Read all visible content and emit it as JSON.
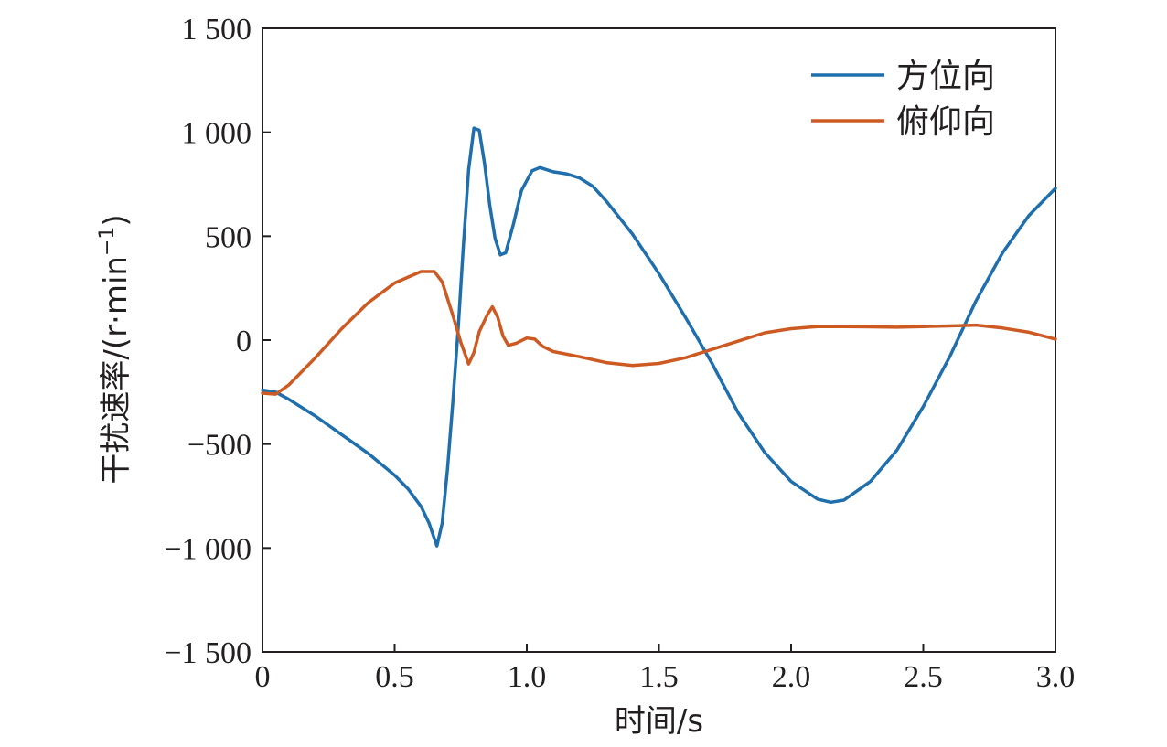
{
  "chart_data": {
    "type": "line",
    "title": "",
    "xlabel": "时间/s",
    "ylabel_main": "干扰速率/(r·min",
    "ylabel_sup": "−1",
    "ylabel_close": ")",
    "xlim": [
      0,
      3.0
    ],
    "ylim": [
      -1500,
      1500
    ],
    "x_ticks": [
      0,
      0.5,
      1.0,
      1.5,
      2.0,
      2.5,
      3.0
    ],
    "x_tick_labels": [
      "0",
      "0.5",
      "1.0",
      "1.5",
      "2.0",
      "2.5",
      "3.0"
    ],
    "y_ticks": [
      1500,
      1000,
      500,
      0,
      -500,
      -1000,
      -1500
    ],
    "y_tick_labels": [
      "1 500",
      "1 000",
      "500",
      "0",
      "−500",
      "−1 000",
      "−1 500"
    ],
    "grid": false,
    "legend_position": "top-right",
    "series": [
      {
        "name": "方位向",
        "color": "#1f6fad",
        "points": [
          [
            0,
            -240
          ],
          [
            0.05,
            -250
          ],
          [
            0.1,
            -285
          ],
          [
            0.2,
            -365
          ],
          [
            0.3,
            -455
          ],
          [
            0.4,
            -545
          ],
          [
            0.5,
            -650
          ],
          [
            0.55,
            -715
          ],
          [
            0.6,
            -800
          ],
          [
            0.63,
            -880
          ],
          [
            0.66,
            -990
          ],
          [
            0.68,
            -880
          ],
          [
            0.7,
            -620
          ],
          [
            0.72,
            -300
          ],
          [
            0.74,
            50
          ],
          [
            0.76,
            450
          ],
          [
            0.78,
            820
          ],
          [
            0.8,
            1020
          ],
          [
            0.82,
            1010
          ],
          [
            0.84,
            850
          ],
          [
            0.86,
            650
          ],
          [
            0.88,
            490
          ],
          [
            0.9,
            410
          ],
          [
            0.92,
            420
          ],
          [
            0.95,
            560
          ],
          [
            0.98,
            720
          ],
          [
            1.02,
            815
          ],
          [
            1.05,
            830
          ],
          [
            1.1,
            810
          ],
          [
            1.15,
            800
          ],
          [
            1.2,
            780
          ],
          [
            1.25,
            740
          ],
          [
            1.3,
            670
          ],
          [
            1.4,
            510
          ],
          [
            1.5,
            320
          ],
          [
            1.6,
            110
          ],
          [
            1.7,
            -110
          ],
          [
            1.8,
            -350
          ],
          [
            1.9,
            -540
          ],
          [
            2.0,
            -680
          ],
          [
            2.1,
            -765
          ],
          [
            2.15,
            -780
          ],
          [
            2.2,
            -770
          ],
          [
            2.3,
            -680
          ],
          [
            2.4,
            -530
          ],
          [
            2.5,
            -320
          ],
          [
            2.6,
            -80
          ],
          [
            2.7,
            190
          ],
          [
            2.8,
            420
          ],
          [
            2.9,
            600
          ],
          [
            3.0,
            730
          ]
        ]
      },
      {
        "name": "俯仰向",
        "color": "#cc5a22",
        "points": [
          [
            0,
            -255
          ],
          [
            0.05,
            -260
          ],
          [
            0.1,
            -215
          ],
          [
            0.2,
            -85
          ],
          [
            0.3,
            55
          ],
          [
            0.4,
            180
          ],
          [
            0.5,
            275
          ],
          [
            0.6,
            330
          ],
          [
            0.65,
            330
          ],
          [
            0.68,
            280
          ],
          [
            0.72,
            120
          ],
          [
            0.75,
            -10
          ],
          [
            0.78,
            -115
          ],
          [
            0.8,
            -60
          ],
          [
            0.82,
            40
          ],
          [
            0.85,
            120
          ],
          [
            0.87,
            160
          ],
          [
            0.89,
            110
          ],
          [
            0.91,
            20
          ],
          [
            0.93,
            -25
          ],
          [
            0.96,
            -15
          ],
          [
            1.0,
            10
          ],
          [
            1.03,
            5
          ],
          [
            1.06,
            -30
          ],
          [
            1.1,
            -55
          ],
          [
            1.2,
            -80
          ],
          [
            1.3,
            -108
          ],
          [
            1.4,
            -122
          ],
          [
            1.5,
            -112
          ],
          [
            1.6,
            -85
          ],
          [
            1.7,
            -45
          ],
          [
            1.8,
            -5
          ],
          [
            1.9,
            35
          ],
          [
            2.0,
            55
          ],
          [
            2.1,
            65
          ],
          [
            2.2,
            65
          ],
          [
            2.3,
            64
          ],
          [
            2.4,
            62
          ],
          [
            2.5,
            65
          ],
          [
            2.6,
            68
          ],
          [
            2.7,
            72
          ],
          [
            2.8,
            58
          ],
          [
            2.9,
            38
          ],
          [
            3.0,
            5
          ]
        ]
      }
    ]
  }
}
